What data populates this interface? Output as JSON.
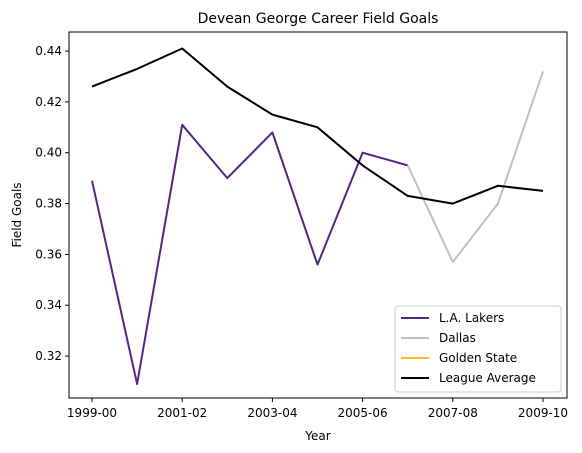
{
  "chart_data": {
    "type": "line",
    "title": "Devean George Career Field Goals",
    "xlabel": "Year",
    "ylabel": "Field Goals",
    "categories": [
      "1999-00",
      "2000-01",
      "2001-02",
      "2002-03",
      "2003-04",
      "2004-05",
      "2005-06",
      "2006-07",
      "2007-08",
      "2008-09",
      "2009-10"
    ],
    "x_tick_labels": [
      "1999-00",
      "2001-02",
      "2003-04",
      "2005-06",
      "2007-08",
      "2009-10"
    ],
    "y_ticks": [
      0.32,
      0.34,
      0.36,
      0.38,
      0.4,
      0.42,
      0.44
    ],
    "y_tick_labels": [
      "0.32",
      "0.34",
      "0.36",
      "0.38",
      "0.40",
      "0.42",
      "0.44"
    ],
    "ylim": [
      0.3035,
      0.4475
    ],
    "grid": false,
    "legend_position": "lower-right",
    "series": [
      {
        "name": "L.A. Lakers",
        "color": "#552583",
        "values": [
          0.389,
          0.309,
          0.411,
          0.39,
          0.408,
          0.356,
          0.4,
          0.395,
          null,
          null,
          null
        ]
      },
      {
        "name": "Dallas",
        "color": "#bfbfbf",
        "values": [
          null,
          null,
          null,
          null,
          null,
          null,
          null,
          0.395,
          0.357,
          0.38,
          0.432
        ]
      },
      {
        "name": "Golden State",
        "color": "#fdb927",
        "values": [
          null,
          null,
          null,
          null,
          null,
          null,
          null,
          null,
          null,
          null,
          null
        ]
      },
      {
        "name": "League Average",
        "color": "#000000",
        "values": [
          0.426,
          0.433,
          0.441,
          0.426,
          0.415,
          0.41,
          0.395,
          0.383,
          0.38,
          0.387,
          0.385
        ]
      }
    ]
  }
}
